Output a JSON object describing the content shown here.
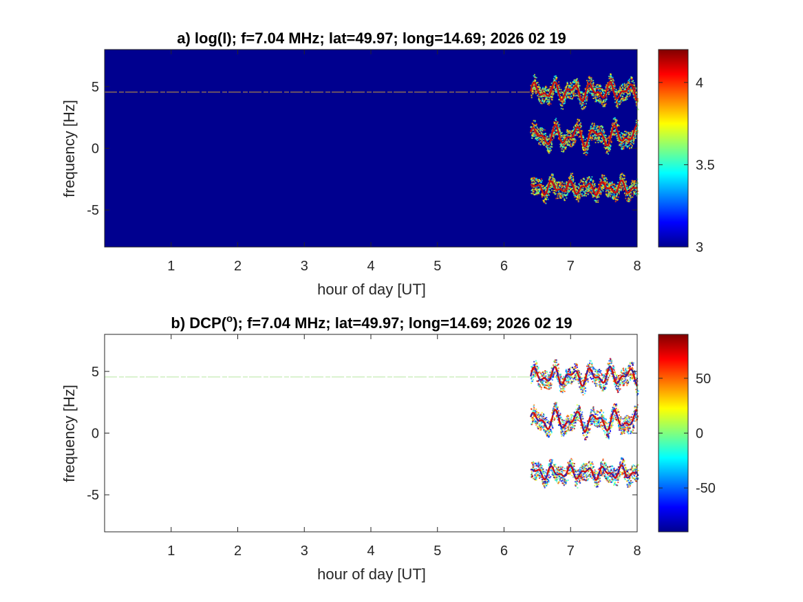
{
  "chart_data": [
    {
      "type": "heatmap",
      "panel": "a",
      "title": "a) log(I); f=7.04 MHz;  lat=49.97; long=14.69; 2026 02 19",
      "xlabel": "hour of day [UT]",
      "ylabel": "frequency [Hz]",
      "xlim": [
        0,
        8
      ],
      "ylim": [
        -8,
        8
      ],
      "xticks": [
        1,
        2,
        3,
        4,
        5,
        6,
        7,
        8
      ],
      "yticks": [
        -5,
        0,
        5
      ],
      "background": "#00008f",
      "colorbar": {
        "colormap": "jet",
        "range": [
          3,
          4.2
        ],
        "ticks": [
          3,
          3.5,
          4
        ]
      },
      "carrier_line": {
        "frequency_hz": 4.55,
        "x_start": 0,
        "x_end": 6.5
      },
      "traces": [
        {
          "center_hz": 4.6,
          "x_start": 6.4,
          "x_end": 8,
          "wobble_hz": 0.8,
          "period_h": 0.28
        },
        {
          "center_hz": 1.0,
          "x_start": 6.4,
          "x_end": 8,
          "wobble_hz": 0.9,
          "period_h": 0.3
        },
        {
          "center_hz": -3.2,
          "x_start": 6.4,
          "x_end": 8,
          "wobble_hz": 0.6,
          "period_h": 0.26
        }
      ]
    },
    {
      "type": "heatmap",
      "panel": "b",
      "title_prefix": "b) DCP(",
      "title_superscript": "o",
      "title_suffix": "); f=7.04 MHz;  lat=49.97; long=14.69; 2026 02 19",
      "xlabel": "hour of day [UT]",
      "ylabel": "frequency [Hz]",
      "xlim": [
        0,
        8
      ],
      "ylim": [
        -8,
        8
      ],
      "xticks": [
        1,
        2,
        3,
        4,
        5,
        6,
        7,
        8
      ],
      "yticks": [
        -5,
        0,
        5
      ],
      "background": "#ffffff",
      "colorbar": {
        "colormap": "jet",
        "range": [
          -90,
          90
        ],
        "ticks": [
          -50,
          0,
          50
        ]
      },
      "carrier_line": {
        "frequency_hz": 4.55,
        "x_start": 0,
        "x_end": 6.5
      },
      "traces": [
        {
          "center_hz": 4.6,
          "x_start": 6.4,
          "x_end": 8,
          "wobble_hz": 0.8,
          "period_h": 0.28
        },
        {
          "center_hz": 1.0,
          "x_start": 6.4,
          "x_end": 8,
          "wobble_hz": 0.9,
          "period_h": 0.3
        },
        {
          "center_hz": -3.2,
          "x_start": 6.4,
          "x_end": 8,
          "wobble_hz": 0.6,
          "period_h": 0.26
        }
      ]
    }
  ]
}
